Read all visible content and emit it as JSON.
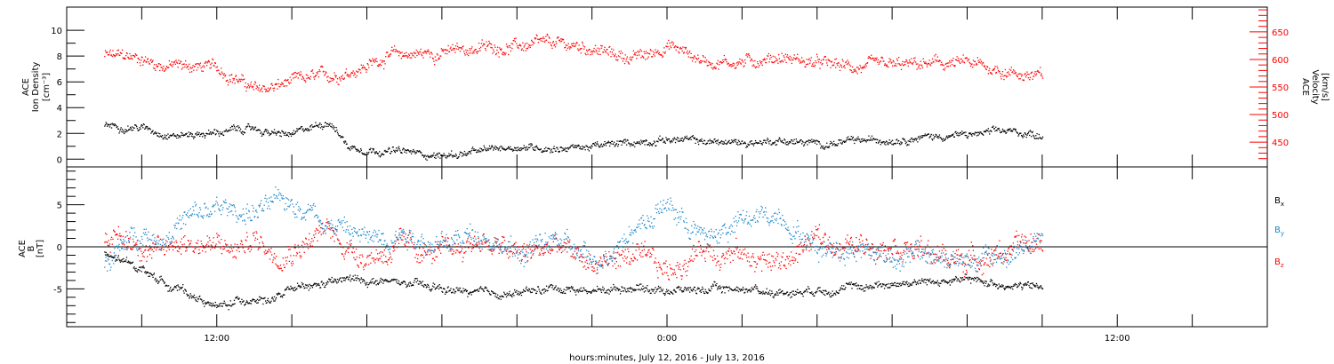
{
  "chart_data": [
    {
      "type": "scatter",
      "panel": "density-velocity",
      "left_axis": {
        "label_lines": [
          "ACE",
          "Ion Density",
          "[cm⁻³]"
        ],
        "ylim": [
          -0.6,
          11.8
        ],
        "ticks": [
          0,
          2,
          4,
          6,
          8,
          10
        ],
        "color": "#000000"
      },
      "right_axis": {
        "label_lines": [
          "ACE",
          "Velocity",
          "[km/s]"
        ],
        "ylim": [
          405,
          695
        ],
        "ticks": [
          450,
          500,
          550,
          600,
          650
        ],
        "color": "#ff0000"
      },
      "series": [
        {
          "key": "velocity",
          "axis": "right",
          "color": "#ff0000",
          "x": [
            -15,
            -14,
            -13.5,
            -13,
            -12,
            -11.5,
            -11,
            -10.5,
            -10,
            -9.5,
            -9,
            -8,
            -7.5,
            -7,
            -6,
            -5,
            -4,
            -3,
            -2,
            -1.5,
            -1,
            -0.5,
            0,
            1,
            2,
            3,
            4,
            5,
            6,
            7,
            8,
            9,
            10
          ],
          "y": [
            608,
            603,
            590,
            590,
            585,
            568,
            545,
            550,
            560,
            566,
            570,
            590,
            607,
            610,
            613,
            622,
            625,
            628,
            622,
            610,
            605,
            608,
            628,
            598,
            596,
            606,
            593,
            586,
            588,
            592,
            593,
            580,
            568
          ],
          "scatter": 14
        },
        {
          "key": "density",
          "axis": "left",
          "color": "#000000",
          "x": [
            -15,
            -14,
            -13.5,
            -13,
            -12,
            -11.5,
            -11,
            -10.5,
            -10,
            -9.5,
            -9,
            -8.5,
            -8,
            -7,
            -6,
            -5,
            -4.5,
            -4,
            -3,
            -2,
            -1,
            0,
            1,
            2,
            3,
            4,
            5,
            6,
            7,
            8,
            9,
            10
          ],
          "y": [
            2.7,
            2.5,
            2.1,
            1.9,
            2.1,
            2.3,
            2.4,
            2.0,
            1.9,
            2.5,
            3.0,
            1.0,
            0.8,
            0.6,
            0.3,
            0.6,
            0.9,
            1.0,
            0.9,
            1.0,
            1.3,
            1.6,
            1.4,
            1.3,
            1.5,
            1.2,
            1.4,
            1.6,
            1.8,
            1.9,
            2.2,
            1.9
          ],
          "scatter": 0.35
        }
      ]
    },
    {
      "type": "scatter",
      "panel": "magnetic-field",
      "left_axis": {
        "label_lines": [
          "ACE",
          "B",
          "[nT]"
        ],
        "ylim": [
          -9.5,
          9.5
        ],
        "ticks": [
          -5,
          0,
          5
        ],
        "color": "#000000"
      },
      "zero_line": 0,
      "series": [
        {
          "key": "bx",
          "name_main": "B",
          "name_sub": "x",
          "color": "#000000",
          "x": [
            -15,
            -14,
            -13.5,
            -13,
            -12,
            -11.5,
            -11,
            -10.5,
            -10,
            -9.5,
            -9,
            -8.5,
            -8,
            -7,
            -6,
            -5,
            -4,
            -3,
            -2,
            -1,
            0,
            1,
            2,
            3,
            4,
            5,
            6,
            7,
            8,
            9,
            10
          ],
          "y": [
            -1,
            -2.5,
            -4,
            -5,
            -7.2,
            -6.5,
            -6,
            -6.3,
            -5,
            -4.8,
            -4.2,
            -3.8,
            -4,
            -4.3,
            -5,
            -5.5,
            -5.5,
            -4.8,
            -5.2,
            -4.7,
            -5.1,
            -5.0,
            -4.9,
            -5.4,
            -5.0,
            -4.8,
            -4.3,
            -4.1,
            -3.9,
            -4.4,
            -4.8
          ],
          "scatter": 0.6
        },
        {
          "key": "by",
          "name_main": "B",
          "name_sub": "y",
          "color": "#1e88c8",
          "x": [
            -15,
            -14,
            -13.5,
            -13,
            -12,
            -11.5,
            -11,
            -10.5,
            -10,
            -9.5,
            -9,
            -8.5,
            -8,
            -7,
            -6,
            -5,
            -4,
            -3,
            -2,
            -1,
            0,
            1,
            2,
            3,
            4,
            5,
            6,
            7,
            8,
            9,
            10
          ],
          "y": [
            -2,
            2,
            1,
            3,
            4.5,
            4.3,
            4.2,
            5,
            5.5,
            4.5,
            3,
            2,
            1,
            2,
            0,
            2,
            -1,
            1,
            -2,
            2,
            5,
            1,
            3,
            4,
            0,
            0,
            -1,
            -1,
            -2,
            -1,
            1
          ],
          "scatter": 1.6
        },
        {
          "key": "bz",
          "name_main": "B",
          "name_sub": "z",
          "color": "#ff0000",
          "x": [
            -15,
            -14,
            -13.5,
            -13,
            -12,
            -11.5,
            -11,
            -10.5,
            -10,
            -9.5,
            -9,
            -8.5,
            -8,
            -7,
            -6,
            -5,
            -4,
            -3,
            -2,
            -1,
            0,
            1,
            2,
            3,
            4,
            5,
            6,
            7,
            8,
            9,
            10
          ],
          "y": [
            1,
            0.5,
            -1,
            1,
            0,
            -0.5,
            1,
            -0.5,
            0,
            1,
            2,
            0,
            -1,
            0,
            -1,
            1,
            -1,
            0,
            -2,
            -1,
            -3,
            0,
            -1,
            -2,
            1,
            0,
            1,
            -1,
            -1.5,
            -0.5,
            0.5
          ],
          "scatter": 1.7
        }
      ]
    }
  ],
  "x_axis": {
    "range_hours": [
      -16,
      16
    ],
    "tick_labels": [
      {
        "h": -12,
        "label": "12:00"
      },
      {
        "h": 0,
        "label": "0:00"
      },
      {
        "h": 12,
        "label": "12:00"
      }
    ],
    "major_ticks": [
      -14,
      -12,
      -10,
      -8,
      -6,
      -4,
      -2,
      0,
      2,
      4,
      6,
      8,
      10,
      12,
      14
    ],
    "xlabel": "hours:minutes, July 12, 2016 - July 13, 2016"
  },
  "data_end_hour": 10
}
